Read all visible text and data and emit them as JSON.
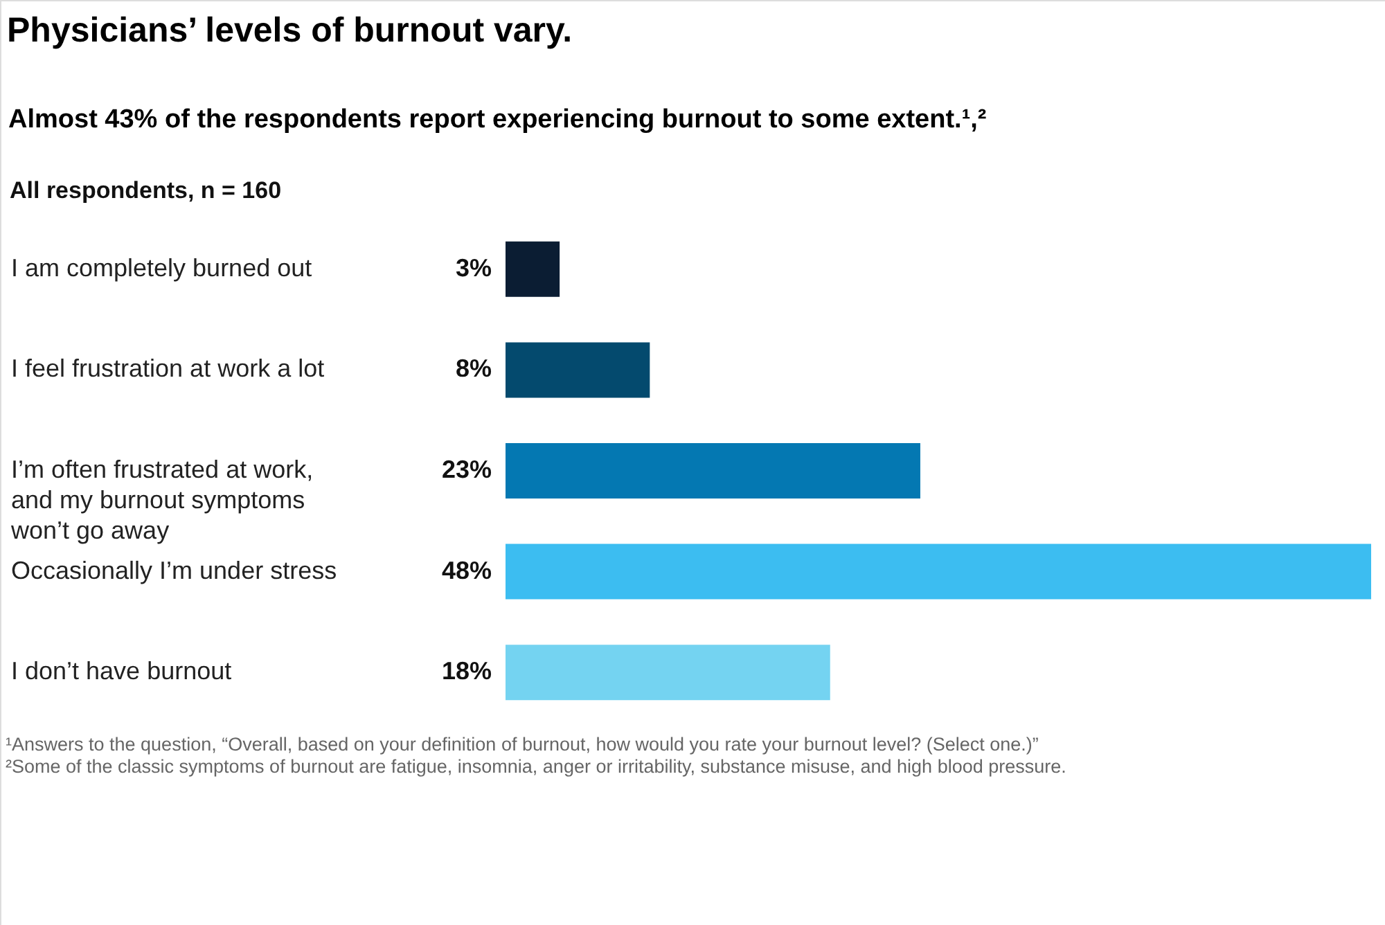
{
  "chart_data": {
    "type": "bar",
    "orientation": "horizontal",
    "title": "Physicians’ levels of burnout vary.",
    "subtitle": "Almost 43% of the respondents report experiencing burnout to some extent.¹,²",
    "ylabel": "All respondents, n = 160",
    "categories": [
      "I am completely burned out",
      "I feel frustration at work a lot",
      "I’m often frustrated at work, and my burnout symptoms won’t go away",
      "Occasionally I’m under stress",
      "I don’t have burnout"
    ],
    "values": [
      3,
      8,
      23,
      48,
      18
    ],
    "colors": [
      "#0b1d33",
      "#044a6e",
      "#0478b2",
      "#3cbdf1",
      "#74d3f1"
    ],
    "value_labels": [
      "3%",
      "8%",
      "23%",
      "48%",
      "18%"
    ],
    "tick_labels": "y",
    "annotations": [
      "¹Answers to the question, “Overall, based on your definition of burnout, how would you rate your burnout level? (Select one.)”",
      "²Some of the classic symptoms of burnout are fatigue, insomnia, anger or irritability, substance misuse, and high blood pressure."
    ]
  }
}
